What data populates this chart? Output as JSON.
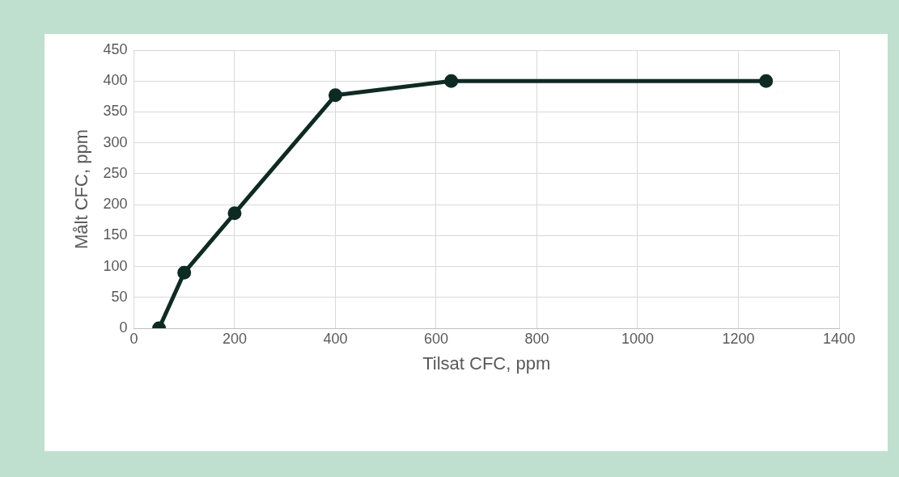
{
  "chart_data": {
    "type": "line",
    "xlabel": "Tilsat CFC, ppm",
    "ylabel": "Målt CFC, ppm",
    "series": [
      {
        "color": "#0d2b22",
        "x": [
          50,
          100,
          200,
          400,
          630,
          1255
        ],
        "values": [
          0,
          90,
          186,
          377,
          400,
          400
        ]
      }
    ],
    "xlim": [
      0,
      1400
    ],
    "xticks": [
      0,
      200,
      400,
      600,
      800,
      1000,
      1200,
      1400
    ],
    "ylim": [
      0,
      450
    ],
    "yticks": [
      0,
      50,
      100,
      150,
      200,
      250,
      300,
      350,
      400,
      450
    ],
    "grid": true,
    "legend": false,
    "marker": "circle",
    "line_style": "solid"
  }
}
